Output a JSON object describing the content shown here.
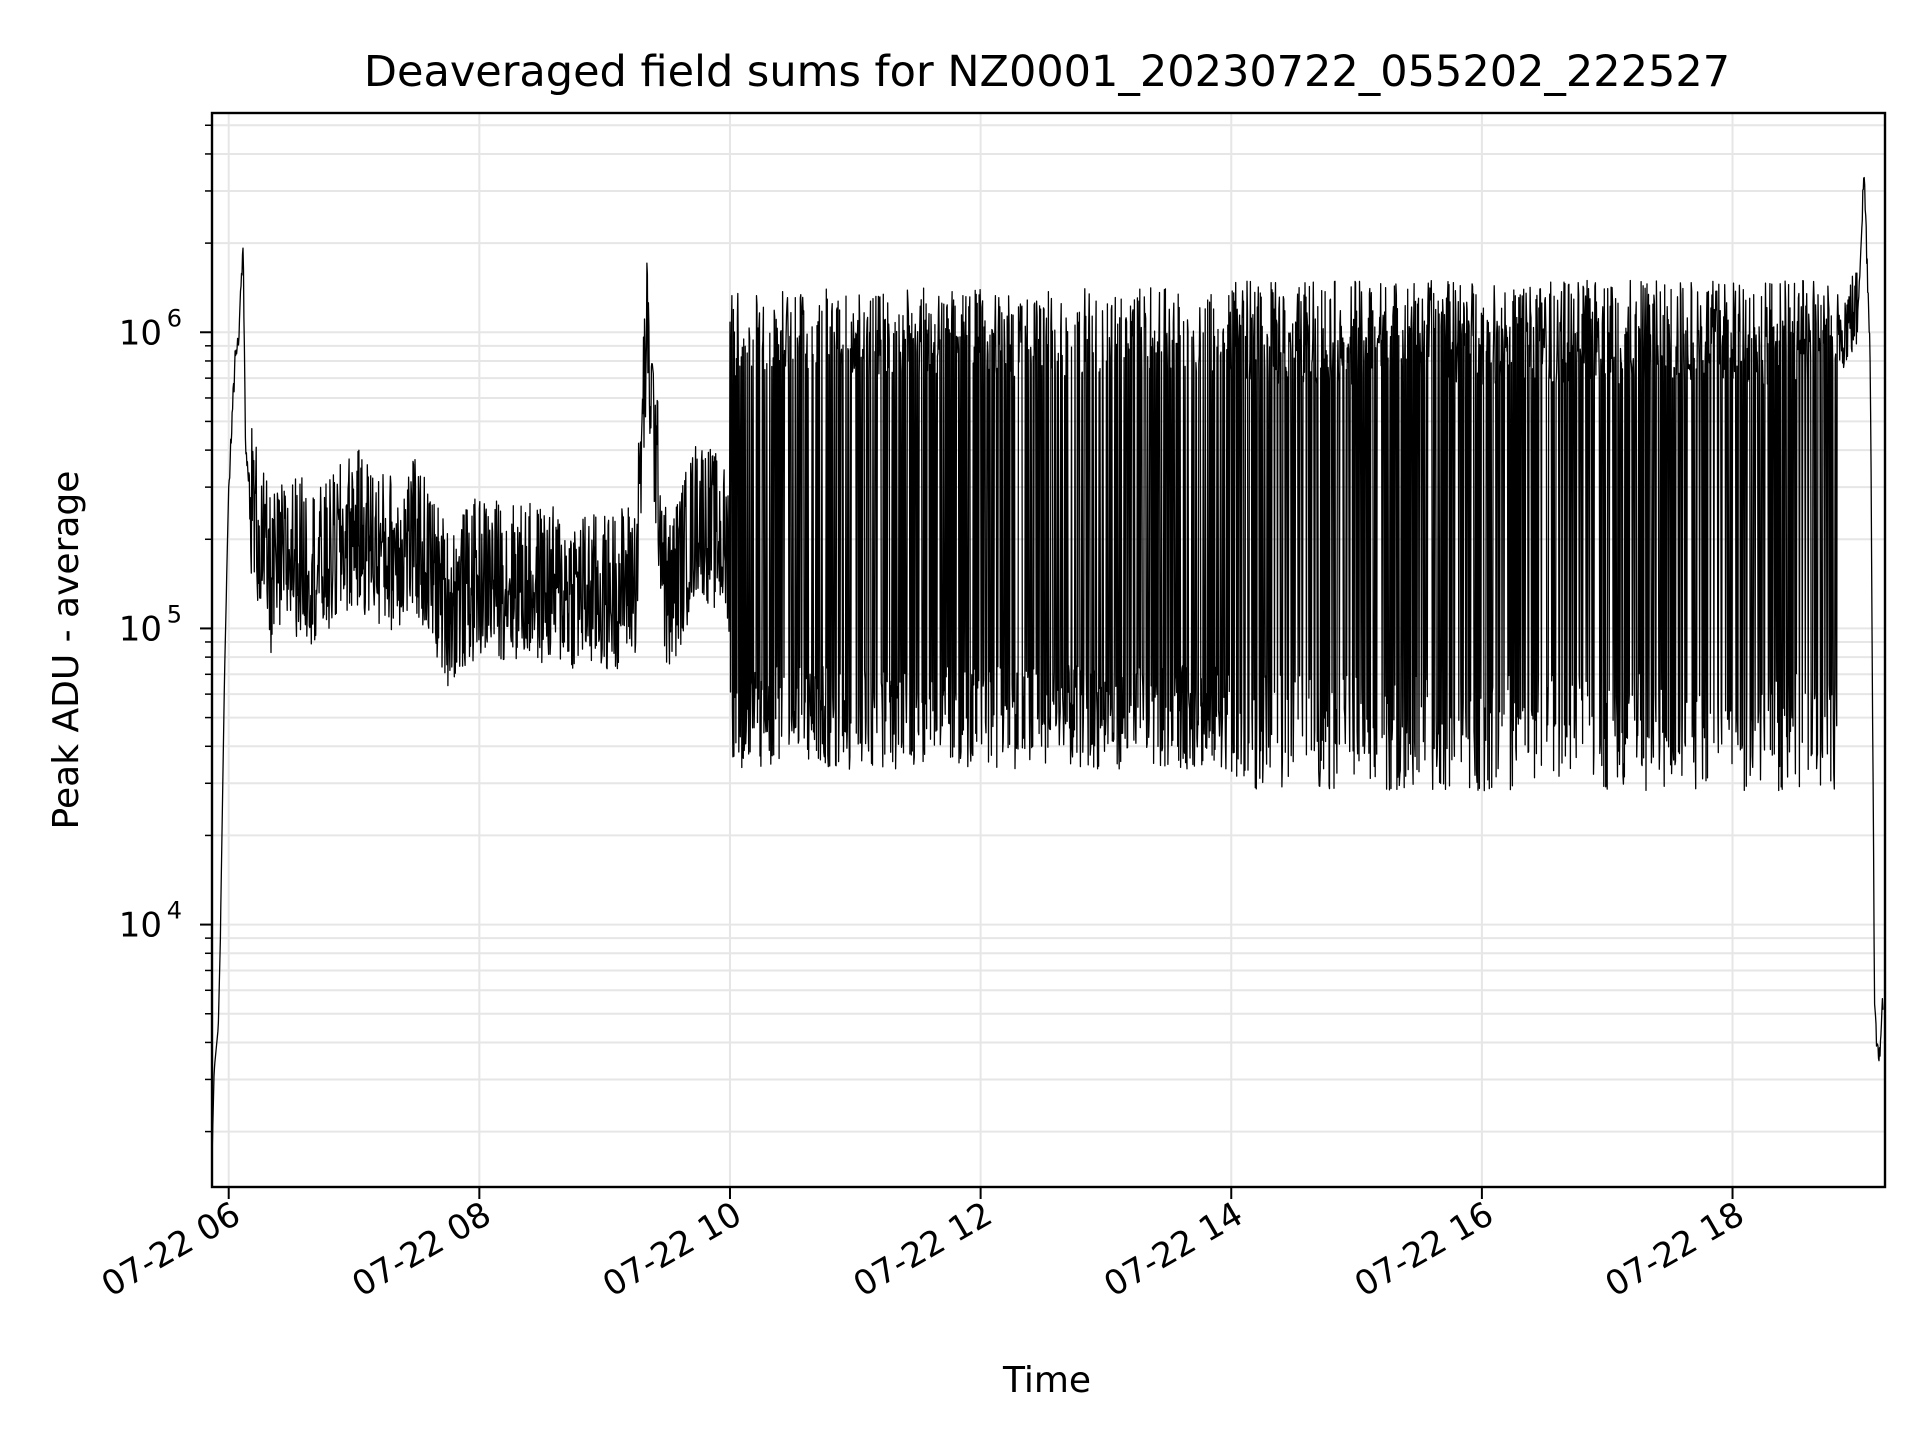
{
  "chart_data": {
    "type": "line",
    "title": "Deaveraged field sums for NZ0001_20230722_055202_222527",
    "xlabel": "Time",
    "ylabel": "Peak ADU - average",
    "yscale": "log",
    "ylim": [
      1300,
      5500000
    ],
    "xlim": [
      "2023-07-22 05:52",
      "2023-07-22 19:13"
    ],
    "x_ticks": [
      {
        "value": "2023-07-22 06:00",
        "label": "07-22 06"
      },
      {
        "value": "2023-07-22 08:00",
        "label": "07-22 08"
      },
      {
        "value": "2023-07-22 10:00",
        "label": "07-22 10"
      },
      {
        "value": "2023-07-22 12:00",
        "label": "07-22 12"
      },
      {
        "value": "2023-07-22 14:00",
        "label": "07-22 14"
      },
      {
        "value": "2023-07-22 16:00",
        "label": "07-22 16"
      },
      {
        "value": "2023-07-22 18:00",
        "label": "07-22 18"
      }
    ],
    "y_ticks": [
      {
        "value": 10000,
        "base": "10",
        "exp": "4"
      },
      {
        "value": 100000,
        "base": "10",
        "exp": "5"
      },
      {
        "value": 1000000,
        "base": "10",
        "exp": "6"
      }
    ],
    "grid": true,
    "line_color": "#000000",
    "grid_color": "#e6e6e6",
    "series": [
      {
        "x": [
          "2023-07-22 05:52",
          "2023-07-22 05:53",
          "2023-07-22 05:55",
          "2023-07-22 05:56",
          "2023-07-22 05:58",
          "2023-07-22 06:00",
          "2023-07-22 06:03",
          "2023-07-22 06:05",
          "2023-07-22 06:07",
          "2023-07-22 06:08",
          "2023-07-22 06:10",
          "2023-07-22 06:12",
          "2023-07-22 06:15",
          "2023-07-22 06:20",
          "2023-07-22 06:30",
          "2023-07-22 06:45",
          "2023-07-22 07:00",
          "2023-07-22 07:15",
          "2023-07-22 07:30",
          "2023-07-22 07:45",
          "2023-07-22 08:00",
          "2023-07-22 08:30",
          "2023-07-22 09:00",
          "2023-07-22 09:15",
          "2023-07-22 09:20",
          "2023-07-22 09:30",
          "2023-07-22 09:45",
          "2023-07-22 10:00",
          "2023-07-22 10:15",
          "2023-07-22 10:30",
          "2023-07-22 11:00",
          "2023-07-22 11:30",
          "2023-07-22 12:00",
          "2023-07-22 12:30",
          "2023-07-22 13:00",
          "2023-07-22 13:30",
          "2023-07-22 14:00",
          "2023-07-22 14:30",
          "2023-07-22 15:00",
          "2023-07-22 15:30",
          "2023-07-22 16:00",
          "2023-07-22 16:30",
          "2023-07-22 17:00",
          "2023-07-22 17:30",
          "2023-07-22 18:00",
          "2023-07-22 18:30",
          "2023-07-22 18:45",
          "2023-07-22 19:00",
          "2023-07-22 19:03",
          "2023-07-22 19:06",
          "2023-07-22 19:08",
          "2023-07-22 19:10",
          "2023-07-22 19:12"
        ],
        "y": [
          1600,
          3200,
          4500,
          9000,
          70000,
          300000,
          800000,
          1000000,
          2000000,
          400000,
          300000,
          250000,
          200000,
          150000,
          180000,
          160000,
          220000,
          180000,
          200000,
          120000,
          150000,
          140000,
          130000,
          150000,
          1000000,
          120000,
          250000,
          180000,
          100000,
          60000,
          55000,
          55000,
          50000,
          50000,
          48000,
          50000,
          55000,
          1400000,
          1500000,
          1400000,
          1300000,
          1200000,
          1300000,
          1400000,
          1300000,
          1500000,
          900000,
          1200000,
          3500000,
          800000,
          5000,
          3500,
          5500
        ]
      }
    ]
  }
}
